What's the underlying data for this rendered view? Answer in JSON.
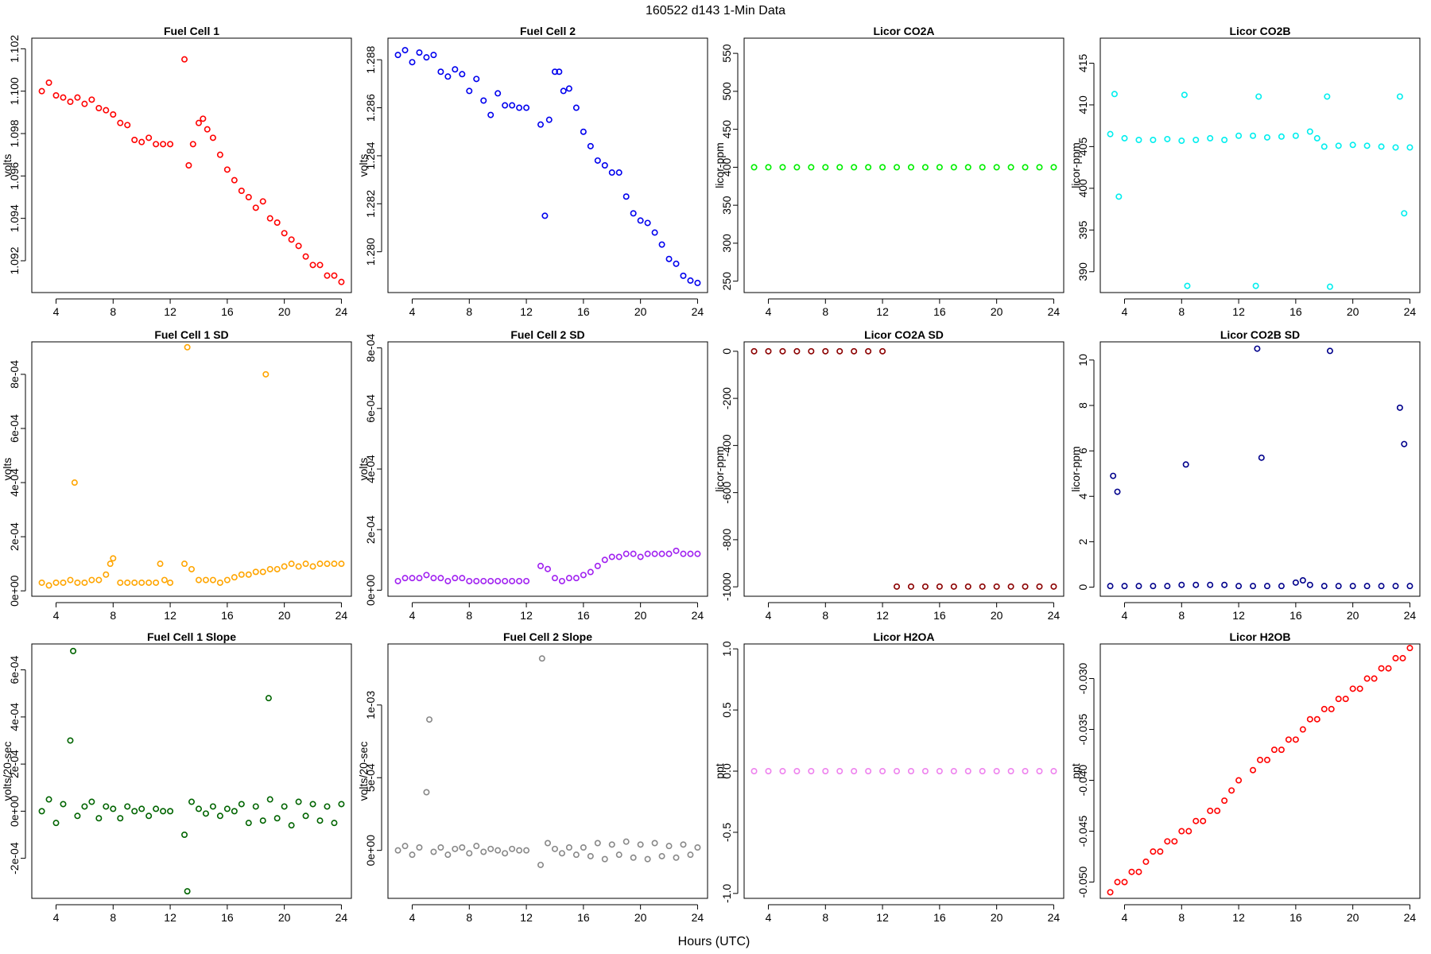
{
  "figure": {
    "title": "160522   d143   1-Min Data",
    "xlabel": "Hours (UTC)"
  },
  "chart_data": [
    {
      "type": "scatter",
      "title": "Fuel Cell 1",
      "ylabel": "volts",
      "color": "#ff0000",
      "xlim": [
        2.3,
        24.7
      ],
      "ylim": [
        1.0905,
        1.1025
      ],
      "xticks": [
        4,
        8,
        12,
        16,
        20,
        24
      ],
      "yticks": [
        1.092,
        1.094,
        1.096,
        1.098,
        1.1,
        1.102
      ],
      "ytick_labels": [
        "1.092",
        "1.094",
        "1.096",
        "1.098",
        "1.100",
        "1.102"
      ],
      "x": [
        3,
        3.5,
        4,
        4.5,
        5,
        5.5,
        6,
        6.5,
        7,
        7.5,
        8,
        8.5,
        9,
        9.5,
        10,
        10.5,
        11,
        11.5,
        12,
        13,
        13.3,
        13.6,
        14,
        14.3,
        14.6,
        15,
        15.5,
        16,
        16.5,
        17,
        17.5,
        18,
        18.5,
        19,
        19.5,
        20,
        20.5,
        21,
        21.5,
        22,
        22.5,
        23,
        23.5,
        24
      ],
      "y": [
        1.1,
        1.1004,
        1.0998,
        1.0997,
        1.0995,
        1.0997,
        1.0994,
        1.0996,
        1.0992,
        1.0991,
        1.0989,
        1.0985,
        1.0984,
        1.0977,
        1.0976,
        1.0978,
        1.0975,
        1.0975,
        1.0975,
        1.1015,
        1.0965,
        1.0975,
        1.0985,
        1.0987,
        1.0982,
        1.0978,
        1.097,
        1.0963,
        1.0958,
        1.0953,
        1.095,
        1.0945,
        1.0948,
        1.094,
        1.0938,
        1.0933,
        1.093,
        1.0927,
        1.0922,
        1.0918,
        1.0918,
        1.0913,
        1.0913,
        1.091
      ]
    },
    {
      "type": "scatter",
      "title": "Fuel Cell 2",
      "ylabel": "volts",
      "color": "#0000ee",
      "xlim": [
        2.3,
        24.7
      ],
      "ylim": [
        1.2783,
        1.2889
      ],
      "xticks": [
        4,
        8,
        12,
        16,
        20,
        24
      ],
      "yticks": [
        1.28,
        1.282,
        1.284,
        1.286,
        1.288
      ],
      "ytick_labels": [
        "1.280",
        "1.282",
        "1.284",
        "1.286",
        "1.288"
      ],
      "x": [
        3,
        3.5,
        4,
        4.5,
        5,
        5.5,
        6,
        6.5,
        7,
        7.5,
        8,
        8.5,
        9,
        9.5,
        10,
        10.5,
        11,
        11.5,
        12,
        13,
        13.3,
        13.6,
        14,
        14.3,
        14.6,
        15,
        15.5,
        16,
        16.5,
        17,
        17.5,
        18,
        18.5,
        19,
        19.5,
        20,
        20.5,
        21,
        21.5,
        22,
        22.5,
        23,
        23.5,
        24
      ],
      "y": [
        1.2882,
        1.2884,
        1.2879,
        1.2883,
        1.2881,
        1.2882,
        1.2875,
        1.2873,
        1.2876,
        1.2874,
        1.2867,
        1.2872,
        1.2863,
        1.2857,
        1.2866,
        1.2861,
        1.2861,
        1.286,
        1.286,
        1.2853,
        1.2815,
        1.2855,
        1.2875,
        1.2875,
        1.2867,
        1.2868,
        1.286,
        1.285,
        1.2844,
        1.2838,
        1.2836,
        1.2833,
        1.2833,
        1.2823,
        1.2816,
        1.2813,
        1.2812,
        1.2808,
        1.2803,
        1.2797,
        1.2795,
        1.279,
        1.2788,
        1.2787
      ]
    },
    {
      "type": "scatter",
      "title": "Licor CO2A",
      "ylabel": "licor-ppm",
      "color": "#00ee00",
      "xlim": [
        2.3,
        24.7
      ],
      "ylim": [
        235,
        570
      ],
      "xticks": [
        4,
        8,
        12,
        16,
        20,
        24
      ],
      "yticks": [
        250,
        300,
        350,
        400,
        450,
        500,
        550
      ],
      "ytick_labels": [
        "250",
        "300",
        "350",
        "400",
        "450",
        "500",
        "550"
      ],
      "x": [
        3,
        4,
        5,
        6,
        7,
        8,
        9,
        10,
        11,
        12,
        13,
        14,
        15,
        16,
        17,
        18,
        19,
        20,
        21,
        22,
        23,
        24
      ],
      "y": [
        400,
        400,
        400,
        400,
        400,
        400,
        400,
        400,
        400,
        400,
        400,
        400,
        400,
        400,
        400,
        400,
        400,
        400,
        400,
        400,
        400,
        400
      ]
    },
    {
      "type": "scatter",
      "title": "Licor CO2B",
      "ylabel": "licor-ppm",
      "color": "#00eeee",
      "xlim": [
        2.3,
        24.7
      ],
      "ylim": [
        387.5,
        418
      ],
      "xticks": [
        4,
        8,
        12,
        16,
        20,
        24
      ],
      "yticks": [
        390,
        395,
        400,
        405,
        410,
        415
      ],
      "ytick_labels": [
        "390",
        "395",
        "400",
        "405",
        "410",
        "415"
      ],
      "x": [
        3,
        3.3,
        3.6,
        4,
        5,
        6,
        7,
        8,
        8.2,
        8.4,
        9,
        10,
        11,
        12,
        13,
        13.2,
        13.4,
        14,
        15,
        16,
        17,
        17.5,
        18,
        18.2,
        18.4,
        19,
        20,
        21,
        22,
        23,
        23.3,
        23.6,
        24
      ],
      "y": [
        406.5,
        411.3,
        399,
        406,
        405.8,
        405.8,
        405.9,
        405.7,
        411.2,
        388.3,
        405.8,
        406,
        405.8,
        406.3,
        406.3,
        388.3,
        411,
        406.1,
        406.2,
        406.3,
        406.8,
        406,
        405,
        411,
        388.2,
        405.1,
        405.2,
        405.1,
        405,
        404.9,
        411,
        397,
        404.9
      ]
    },
    {
      "type": "scatter",
      "title": "Fuel Cell 1 SD",
      "ylabel": "volts",
      "color": "#ffa500",
      "xlim": [
        2.3,
        24.7
      ],
      "ylim": [
        -2e-05,
        0.00092
      ],
      "xticks": [
        4,
        8,
        12,
        16,
        20,
        24
      ],
      "yticks": [
        0,
        0.0002,
        0.0004,
        0.0006,
        0.0008
      ],
      "ytick_labels": [
        "0e+00",
        "2e-04",
        "4e-04",
        "6e-04",
        "8e-04"
      ],
      "x": [
        3,
        3.5,
        4,
        4.5,
        5,
        5.3,
        5.5,
        6,
        6.5,
        7,
        7.5,
        7.8,
        8,
        8.5,
        9,
        9.5,
        10,
        10.5,
        11,
        11.3,
        11.6,
        12,
        13,
        13.2,
        13.5,
        14,
        14.5,
        15,
        15.5,
        16,
        16.5,
        17,
        17.5,
        18,
        18.5,
        18.7,
        19,
        19.5,
        20,
        20.5,
        21,
        21.5,
        22,
        22.5,
        23,
        23.5,
        24
      ],
      "y": [
        3e-05,
        2e-05,
        3e-05,
        3e-05,
        4e-05,
        0.0004,
        3e-05,
        3e-05,
        4e-05,
        4e-05,
        6e-05,
        0.0001,
        0.00012,
        3e-05,
        3e-05,
        3e-05,
        3e-05,
        3e-05,
        3e-05,
        0.0001,
        4e-05,
        3e-05,
        0.0001,
        0.0009,
        8e-05,
        4e-05,
        4e-05,
        4e-05,
        3e-05,
        4e-05,
        5e-05,
        6e-05,
        6e-05,
        7e-05,
        7e-05,
        0.0008,
        8e-05,
        8e-05,
        9e-05,
        0.0001,
        9e-05,
        0.0001,
        9e-05,
        0.0001,
        0.0001,
        0.0001,
        0.0001
      ]
    },
    {
      "type": "scatter",
      "title": "Fuel Cell 2 SD",
      "ylabel": "volts",
      "color": "#a020f0",
      "xlim": [
        2.3,
        24.7
      ],
      "ylim": [
        -2e-05,
        0.00082
      ],
      "xticks": [
        4,
        8,
        12,
        16,
        20,
        24
      ],
      "yticks": [
        0,
        0.0002,
        0.0004,
        0.0006,
        0.0008
      ],
      "ytick_labels": [
        "0e+00",
        "2e-04",
        "4e-04",
        "6e-04",
        "8e-04"
      ],
      "x": [
        3,
        3.5,
        4,
        4.5,
        5,
        5.5,
        6,
        6.5,
        7,
        7.5,
        8,
        8.5,
        9,
        9.5,
        10,
        10.5,
        11,
        11.5,
        12,
        13,
        13.5,
        14,
        14.5,
        15,
        15.5,
        16,
        16.5,
        17,
        17.5,
        18,
        18.5,
        19,
        19.5,
        20,
        20.5,
        21,
        21.5,
        22,
        22.5,
        23,
        23.5,
        24
      ],
      "y": [
        3e-05,
        4e-05,
        4e-05,
        4e-05,
        5e-05,
        4e-05,
        4e-05,
        3e-05,
        4e-05,
        4e-05,
        3e-05,
        3e-05,
        3e-05,
        3e-05,
        3e-05,
        3e-05,
        3e-05,
        3e-05,
        3e-05,
        8e-05,
        7e-05,
        4e-05,
        3e-05,
        4e-05,
        4e-05,
        5e-05,
        6e-05,
        8e-05,
        0.0001,
        0.00011,
        0.00011,
        0.00012,
        0.00012,
        0.00011,
        0.00012,
        0.00012,
        0.00012,
        0.00012,
        0.00013,
        0.00012,
        0.00012,
        0.00012
      ]
    },
    {
      "type": "scatter",
      "title": "Licor CO2A SD",
      "ylabel": "licor-ppm",
      "color": "#8b0000",
      "xlim": [
        2.3,
        24.7
      ],
      "ylim": [
        -1040,
        40
      ],
      "xticks": [
        4,
        8,
        12,
        16,
        20,
        24
      ],
      "yticks": [
        -1000,
        -800,
        -600,
        -400,
        -200,
        0
      ],
      "ytick_labels": [
        "-1000",
        "-800",
        "-600",
        "-400",
        "-200",
        "0"
      ],
      "x": [
        3,
        4,
        5,
        6,
        7,
        8,
        9,
        10,
        11,
        12,
        13,
        14,
        15,
        16,
        17,
        18,
        19,
        20,
        21,
        22,
        23,
        24
      ],
      "y": [
        0,
        0,
        0,
        0,
        0,
        0,
        0,
        0,
        0,
        0,
        -999,
        -999,
        -999,
        -999,
        -999,
        -999,
        -999,
        -999,
        -999,
        -999,
        -999,
        -999
      ]
    },
    {
      "type": "scatter",
      "title": "Licor CO2B SD",
      "ylabel": "licor-ppm",
      "color": "#00008b",
      "xlim": [
        2.3,
        24.7
      ],
      "ylim": [
        -0.4,
        10.8
      ],
      "xticks": [
        4,
        8,
        12,
        16,
        20,
        24
      ],
      "yticks": [
        0,
        2,
        4,
        6,
        8,
        10
      ],
      "ytick_labels": [
        "0",
        "2",
        "4",
        "6",
        "8",
        "10"
      ],
      "x": [
        3,
        3.2,
        3.5,
        4,
        5,
        6,
        7,
        8,
        8.3,
        9,
        10,
        11,
        12,
        13,
        13.3,
        13.6,
        14,
        15,
        16,
        16.5,
        17,
        18,
        18.4,
        19,
        20,
        21,
        22,
        23,
        23.3,
        23.6,
        24
      ],
      "y": [
        0.05,
        4.9,
        4.2,
        0.05,
        0.05,
        0.05,
        0.05,
        0.1,
        5.4,
        0.1,
        0.1,
        0.1,
        0.05,
        0.05,
        10.5,
        5.7,
        0.05,
        0.05,
        0.2,
        0.3,
        0.1,
        0.05,
        10.4,
        0.05,
        0.05,
        0.05,
        0.05,
        0.05,
        7.9,
        6.3,
        0.05
      ]
    },
    {
      "type": "scatter",
      "title": "Fuel Cell 1 Slope",
      "ylabel": "volts/20-sec",
      "color": "#006400",
      "xlim": [
        2.3,
        24.7
      ],
      "ylim": [
        -0.00037,
        0.00071
      ],
      "xticks": [
        4,
        8,
        12,
        16,
        20,
        24
      ],
      "yticks": [
        -0.0002,
        0,
        0.0002,
        0.0004,
        0.0006
      ],
      "ytick_labels": [
        "-2e-04",
        "0e+00",
        "2e-04",
        "4e-04",
        "6e-04"
      ],
      "x": [
        3,
        3.5,
        4,
        4.5,
        5,
        5.2,
        5.5,
        6,
        6.5,
        7,
        7.5,
        8,
        8.5,
        9,
        9.5,
        10,
        10.5,
        11,
        11.5,
        12,
        13,
        13.2,
        13.5,
        14,
        14.5,
        15,
        15.5,
        16,
        16.5,
        17,
        17.5,
        18,
        18.5,
        18.9,
        19,
        19.5,
        20,
        20.5,
        21,
        21.5,
        22,
        22.5,
        23,
        23.5,
        24
      ],
      "y": [
        0,
        5e-05,
        -5e-05,
        3e-05,
        0.0003,
        0.00068,
        -2e-05,
        2e-05,
        4e-05,
        -3e-05,
        2e-05,
        1e-05,
        -3e-05,
        2e-05,
        0,
        1e-05,
        -2e-05,
        1e-05,
        0,
        0,
        -0.0001,
        -0.00034,
        4e-05,
        1e-05,
        -1e-05,
        2e-05,
        -2e-05,
        1e-05,
        0,
        3e-05,
        -5e-05,
        2e-05,
        -4e-05,
        0.00048,
        5e-05,
        -3e-05,
        2e-05,
        -6e-05,
        4e-05,
        -2e-05,
        3e-05,
        -4e-05,
        2e-05,
        -5e-05,
        3e-05
      ]
    },
    {
      "type": "scatter",
      "title": "Fuel Cell 2 Slope",
      "ylabel": "volts/20-sec",
      "color": "#888888",
      "xlim": [
        2.3,
        24.7
      ],
      "ylim": [
        -0.00033,
        0.00142
      ],
      "xticks": [
        4,
        8,
        12,
        16,
        20,
        24
      ],
      "yticks": [
        0,
        0.0005,
        0.001
      ],
      "ytick_labels": [
        "0e+00",
        "5e-04",
        "1e-03"
      ],
      "x": [
        3,
        3.5,
        4,
        4.5,
        5,
        5.2,
        5.5,
        6,
        6.5,
        7,
        7.5,
        8,
        8.5,
        9,
        9.5,
        10,
        10.5,
        11,
        11.5,
        12,
        13,
        13.1,
        13.5,
        14,
        14.5,
        15,
        15.5,
        16,
        16.5,
        17,
        17.5,
        18,
        18.5,
        19,
        19.5,
        20,
        20.5,
        21,
        21.5,
        22,
        22.5,
        23,
        23.5,
        24
      ],
      "y": [
        0,
        3e-05,
        -3e-05,
        2e-05,
        0.0004,
        0.0009,
        -1e-05,
        2e-05,
        -3e-05,
        1e-05,
        2e-05,
        -2e-05,
        3e-05,
        -1e-05,
        1e-05,
        0,
        -2e-05,
        1e-05,
        0,
        0,
        -0.0001,
        0.00132,
        5e-05,
        1e-05,
        -2e-05,
        2e-05,
        -3e-05,
        2e-05,
        -4e-05,
        5e-05,
        -6e-05,
        4e-05,
        -3e-05,
        6e-05,
        -5e-05,
        4e-05,
        -6e-05,
        5e-05,
        -4e-05,
        3e-05,
        -5e-05,
        4e-05,
        -3e-05,
        2e-05
      ]
    },
    {
      "type": "scatter",
      "title": "Licor H2OA",
      "ylabel": "ppt",
      "color": "#ee82ee",
      "xlim": [
        2.3,
        24.7
      ],
      "ylim": [
        -1.04,
        1.04
      ],
      "xticks": [
        4,
        8,
        12,
        16,
        20,
        24
      ],
      "yticks": [
        -1.0,
        -0.5,
        0.0,
        0.5,
        1.0
      ],
      "ytick_labels": [
        "-1.0",
        "-0.5",
        "0.0",
        "0.5",
        "1.0"
      ],
      "x": [
        3,
        4,
        5,
        6,
        7,
        8,
        9,
        10,
        11,
        12,
        13,
        14,
        15,
        16,
        17,
        18,
        19,
        20,
        21,
        22,
        23,
        24
      ],
      "y": [
        0,
        0,
        0,
        0,
        0,
        0,
        0,
        0,
        0,
        0,
        0,
        0,
        0,
        0,
        0,
        0,
        0,
        0,
        0,
        0,
        0,
        0
      ]
    },
    {
      "type": "scatter",
      "title": "Licor H2OB",
      "ylabel": "ppt",
      "color": "#ff0000",
      "xlim": [
        2.3,
        24.7
      ],
      "ylim": [
        -0.0516,
        -0.0266
      ],
      "xticks": [
        4,
        8,
        12,
        16,
        20,
        24
      ],
      "yticks": [
        -0.05,
        -0.045,
        -0.04,
        -0.035,
        -0.03
      ],
      "ytick_labels": [
        "-0.050",
        "-0.045",
        "-0.040",
        "-0.035",
        "-0.030"
      ],
      "x": [
        3,
        3.5,
        4,
        4.5,
        5,
        5.5,
        6,
        6.5,
        7,
        7.5,
        8,
        8.5,
        9,
        9.5,
        10,
        10.5,
        11,
        11.5,
        12,
        13,
        13.5,
        14,
        14.5,
        15,
        15.5,
        16,
        16.5,
        17,
        17.5,
        18,
        18.5,
        19,
        19.5,
        20,
        20.5,
        21,
        21.5,
        22,
        22.5,
        23,
        23.5,
        24
      ],
      "y": [
        -0.051,
        -0.05,
        -0.05,
        -0.049,
        -0.049,
        -0.048,
        -0.047,
        -0.047,
        -0.046,
        -0.046,
        -0.045,
        -0.045,
        -0.044,
        -0.044,
        -0.043,
        -0.043,
        -0.042,
        -0.041,
        -0.04,
        -0.039,
        -0.038,
        -0.038,
        -0.037,
        -0.037,
        -0.036,
        -0.036,
        -0.035,
        -0.034,
        -0.034,
        -0.033,
        -0.033,
        -0.032,
        -0.032,
        -0.031,
        -0.031,
        -0.03,
        -0.03,
        -0.029,
        -0.029,
        -0.028,
        -0.028,
        -0.027
      ]
    }
  ]
}
